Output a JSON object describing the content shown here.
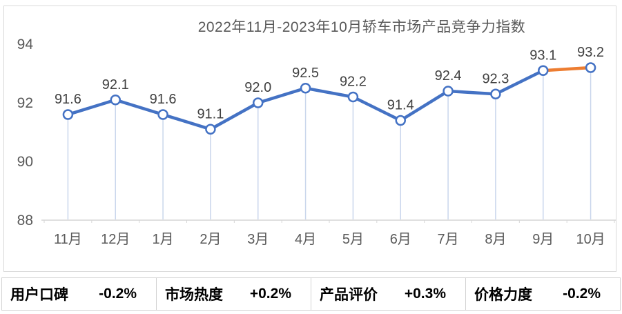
{
  "chart_data": {
    "type": "line",
    "title": "2022年11月-2023年10月轿车市场产品竞争力指数",
    "categories": [
      "11月",
      "12月",
      "1月",
      "2月",
      "3月",
      "4月",
      "5月",
      "6月",
      "7月",
      "8月",
      "9月",
      "10月"
    ],
    "series": [
      {
        "name": "轿车市场产品竞争力指数",
        "values": [
          91.6,
          92.1,
          91.6,
          91.1,
          92.0,
          92.5,
          92.2,
          91.4,
          92.4,
          92.3,
          93.1,
          93.2
        ]
      }
    ],
    "ylim": [
      88,
      94
    ],
    "yticks": [
      88,
      90,
      92,
      94
    ],
    "grid": false,
    "legend": "none",
    "data_labels": true,
    "highlight_last_segment": true,
    "colors": {
      "line": "#4472c4",
      "last_segment": "#ed7d31",
      "marker_fill": "#ffffff",
      "marker_stroke": "#4472c4",
      "drop_line": "#c9d6ec",
      "axis_line": "#d6d6d6",
      "axis_text": "#595959",
      "label_text": "#404040"
    }
  },
  "stats": [
    {
      "label": "用户口碑",
      "value": "-0.2%"
    },
    {
      "label": "市场热度",
      "value": "+0.2%"
    },
    {
      "label": "产品评价",
      "value": "+0.3%"
    },
    {
      "label": "价格力度",
      "value": "-0.2%"
    }
  ]
}
